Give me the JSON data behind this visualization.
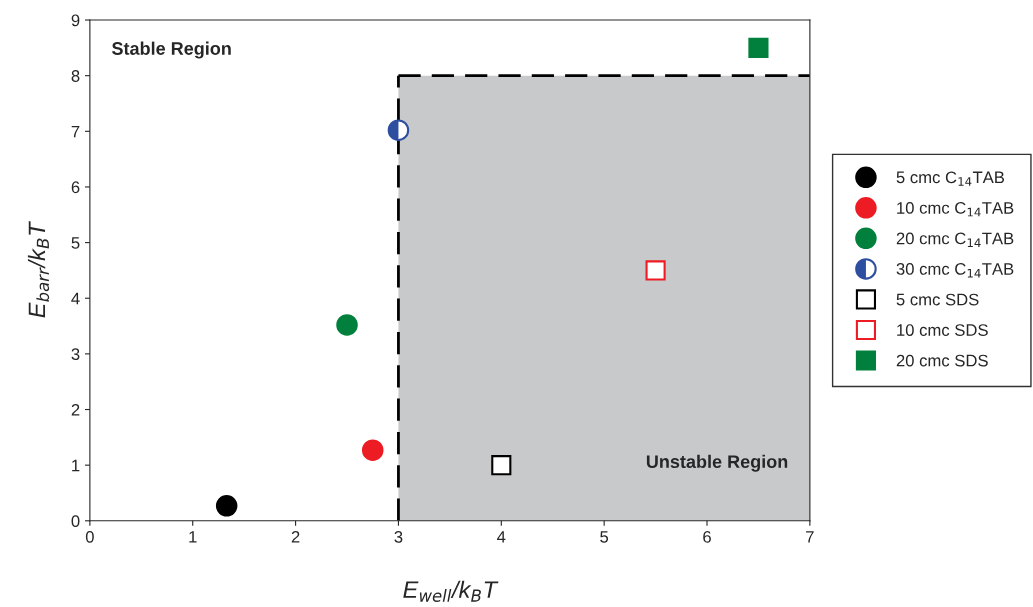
{
  "chart_data": {
    "type": "scatter",
    "xlabel": "E$_{well}$/k$_{B}$T",
    "ylabel": "E$_{barr}$/k$_{B}$T",
    "xlim": [
      0,
      7
    ],
    "ylim": [
      0,
      9
    ],
    "xticks": [
      0,
      1,
      2,
      3,
      4,
      5,
      6,
      7
    ],
    "yticks": [
      0,
      1,
      2,
      3,
      4,
      5,
      6,
      7,
      8,
      9
    ],
    "grid": false,
    "legend": "right",
    "series": [
      {
        "name": "5 cmc C$_{14}$TAB",
        "color": "#000000",
        "marker": "circle",
        "x": [
          1.33
        ],
        "values": [
          0.27
        ]
      },
      {
        "name": "10 cmc C$_{14}$TAB",
        "color": "#ed1c24",
        "marker": "circle",
        "x": [
          2.75
        ],
        "values": [
          1.27
        ]
      },
      {
        "name": "20 cmc C$_{14}$TAB",
        "color": "#00803c",
        "marker": "circle",
        "x": [
          2.5
        ],
        "values": [
          3.52
        ]
      },
      {
        "name": "30 cmc C$_{14}$TAB",
        "color": "#2e4ea0",
        "marker": "circle",
        "x": [
          3.0
        ],
        "values": [
          7.02
        ]
      },
      {
        "name": "5 cmc SDS",
        "color": "#000000",
        "marker": "square",
        "x": [
          4.0
        ],
        "values": [
          1.0
        ]
      },
      {
        "name": "10 cmc SDS",
        "color": "#ed1c24",
        "marker": "square",
        "x": [
          5.5
        ],
        "values": [
          4.5
        ]
      },
      {
        "name": "20 cmc SDS",
        "color": "#00803c",
        "marker": "square",
        "x": [
          6.5
        ],
        "values": [
          8.5
        ]
      }
    ],
    "ref_lines": [
      {
        "axis": "x",
        "value": 3,
        "color": "#000000",
        "line_style": "dashed"
      },
      {
        "axis": "y",
        "value": 8,
        "color": "#000000",
        "line_style": "dashed"
      }
    ],
    "bands": [
      {
        "axis": "x",
        "from": 3,
        "to": 7,
        "color": "#c8c9cb"
      }
    ],
    "annotations": [
      "Stable Region",
      "Unstable Region"
    ]
  }
}
